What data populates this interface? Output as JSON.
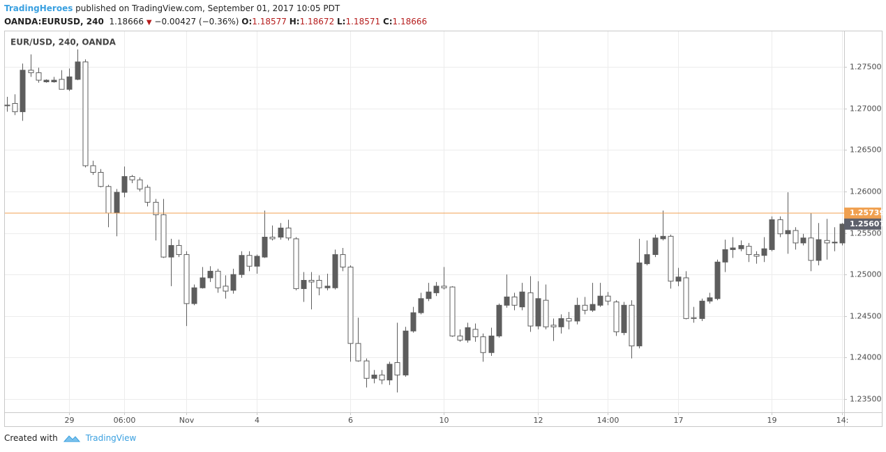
{
  "header": {
    "author": "TradingHeroes",
    "published": "published on TradingView.com, September 01, 2017 10:05 PDT",
    "symbol": "OANDA:EURUSD, 240",
    "last": "1.18666",
    "change": "−0.00427 (−0.36%)",
    "o_label": "O:",
    "o": "1.18577",
    "h_label": "H:",
    "h": "1.18672",
    "l_label": "L:",
    "l": "1.18571",
    "c_label": "C:",
    "c": "1.18666"
  },
  "footer": {
    "created": "Created with",
    "brand": "TradingView"
  },
  "chart_data": {
    "type": "candlestick",
    "title": "EUR/USD, 240, OANDA",
    "categories": [
      null,
      null,
      null,
      null,
      null,
      null,
      null,
      null,
      "29",
      null,
      null,
      null,
      null,
      null,
      null,
      "06:00",
      null,
      null,
      null,
      null,
      null,
      null,
      null,
      "Nov",
      null,
      null,
      null,
      null,
      null,
      null,
      null,
      null,
      "4",
      null,
      null,
      null,
      null,
      null,
      null,
      null,
      null,
      null,
      null,
      null,
      "6",
      null,
      null,
      null,
      null,
      null,
      null,
      null,
      null,
      null,
      null,
      null,
      "10",
      null,
      null,
      null,
      null,
      null,
      null,
      null,
      null,
      null,
      null,
      null,
      "12",
      null,
      null,
      null,
      null,
      null,
      null,
      null,
      null,
      "14:00",
      null,
      null,
      null,
      null,
      null,
      null,
      null,
      null,
      "17",
      null,
      null,
      null,
      null,
      null,
      null,
      null,
      null,
      null,
      null,
      null,
      "19",
      null,
      null,
      null,
      null,
      null,
      null,
      null,
      null,
      "14:"
    ],
    "open": [
      1.2704,
      1.2706,
      1.2696,
      1.2746,
      1.2743,
      1.2732,
      1.2732,
      1.2735,
      1.2723,
      1.2735,
      1.2756,
      1.2631,
      1.2623,
      1.2606,
      1.2574,
      1.2599,
      1.2618,
      1.2614,
      1.2605,
      1.2587,
      1.2572,
      1.2521,
      1.2535,
      1.2524,
      1.2465,
      1.2484,
      1.2496,
      1.2504,
      1.2486,
      1.2481,
      1.25,
      1.2523,
      1.251,
      1.2521,
      1.2545,
      1.2545,
      1.2556,
      1.2543,
      1.2483,
      1.2493,
      1.2493,
      1.2484,
      1.2484,
      1.2524,
      1.2509,
      1.2417,
      1.2396,
      1.2375,
      1.2379,
      1.2373,
      1.2394,
      1.2379,
      1.2432,
      1.2454,
      1.2471,
      1.2478,
      1.2486,
      1.2485,
      1.2426,
      1.2421,
      1.2434,
      1.2425,
      1.2406,
      1.2426,
      1.2463,
      1.2473,
      1.2461,
      1.2478,
      1.2438,
      1.2469,
      1.2439,
      1.2437,
      1.2447,
      1.2444,
      1.2463,
      1.2457,
      1.2463,
      1.2474,
      1.2467,
      1.243,
      1.2463,
      1.2414,
      1.2513,
      1.2524,
      1.2543,
      1.2546,
      1.2492,
      1.2496,
      1.2448,
      1.2447,
      1.2468,
      1.2471,
      1.2515,
      1.253,
      1.2531,
      1.2534,
      1.2524,
      1.2523,
      1.253,
      1.2566,
      1.2549,
      1.2553,
      1.2538,
      1.2544,
      1.2517,
      1.2541,
      1.2538,
      1.2538
    ],
    "high": [
      1.2714,
      1.2717,
      1.2754,
      1.2765,
      1.2749,
      1.2735,
      1.2738,
      1.2746,
      1.2748,
      1.2771,
      1.2759,
      1.2637,
      1.2627,
      1.2608,
      1.2603,
      1.263,
      1.262,
      1.2617,
      1.2608,
      1.2591,
      1.2591,
      1.2543,
      1.2542,
      1.2528,
      1.2488,
      1.2509,
      1.251,
      1.2507,
      1.2499,
      1.2507,
      1.2528,
      1.2528,
      1.2524,
      1.2577,
      1.2559,
      1.2562,
      1.2566,
      1.2545,
      1.2503,
      1.2503,
      1.2499,
      1.2501,
      1.253,
      1.2532,
      1.2511,
      1.2448,
      1.2399,
      1.2385,
      1.2385,
      1.2395,
      1.2442,
      1.2437,
      1.2461,
      1.2478,
      1.249,
      1.2491,
      1.2509,
      1.2486,
      1.2434,
      1.2442,
      1.2441,
      1.2429,
      1.2436,
      1.2465,
      1.25,
      1.2478,
      1.249,
      1.2498,
      1.2492,
      1.2488,
      1.2447,
      1.2452,
      1.2455,
      1.2472,
      1.2473,
      1.249,
      1.249,
      1.2479,
      1.2469,
      1.2467,
      1.2469,
      1.2543,
      1.2541,
      1.2548,
      1.2577,
      1.2548,
      1.2508,
      1.2504,
      1.2461,
      1.2471,
      1.2478,
      1.2518,
      1.2542,
      1.2545,
      1.2541,
      1.2538,
      1.2528,
      1.2545,
      1.257,
      1.257,
      1.2599,
      1.2557,
      1.2549,
      1.2574,
      1.2562,
      1.2567,
      1.2557,
      1.2562
    ],
    "low": [
      1.2696,
      1.2692,
      1.2685,
      1.2738,
      1.2731,
      1.2731,
      1.2731,
      1.2723,
      1.2721,
      1.2734,
      1.2629,
      1.262,
      1.2605,
      1.2557,
      1.2546,
      1.2593,
      1.261,
      1.26,
      1.2582,
      1.2541,
      1.252,
      1.2486,
      1.2521,
      1.2438,
      1.2463,
      1.2483,
      1.2491,
      1.2478,
      1.2471,
      1.2477,
      1.2496,
      1.2504,
      1.2501,
      1.252,
      1.2541,
      1.2542,
      1.2541,
      1.2481,
      1.2467,
      1.2458,
      1.2475,
      1.2481,
      1.2482,
      1.2504,
      1.2395,
      1.2395,
      1.2364,
      1.2369,
      1.2368,
      1.2367,
      1.2358,
      1.2377,
      1.243,
      1.2452,
      1.2468,
      1.2474,
      1.2482,
      1.2425,
      1.2419,
      1.2418,
      1.2419,
      1.2395,
      1.2402,
      1.2424,
      1.246,
      1.2457,
      1.2457,
      1.2431,
      1.2434,
      1.2434,
      1.242,
      1.2429,
      1.2434,
      1.244,
      1.2452,
      1.2455,
      1.2461,
      1.2463,
      1.2426,
      1.2427,
      1.2399,
      1.2411,
      1.2511,
      1.2521,
      1.2541,
      1.2483,
      1.2486,
      1.2446,
      1.2442,
      1.2444,
      1.2465,
      1.2469,
      1.2503,
      1.252,
      1.2528,
      1.2515,
      1.2513,
      1.2515,
      1.2528,
      1.2545,
      1.2525,
      1.253,
      1.2535,
      1.2504,
      1.2511,
      1.2518,
      1.2528,
      1.2535
    ],
    "close": [
      1.2704,
      1.2696,
      1.2746,
      1.2743,
      1.2734,
      1.2734,
      1.2734,
      1.2723,
      1.2738,
      1.2756,
      1.2631,
      1.2623,
      1.2606,
      1.2574,
      1.2599,
      1.2618,
      1.2614,
      1.2603,
      1.2587,
      1.2572,
      1.2521,
      1.2535,
      1.2524,
      1.2465,
      1.2484,
      1.2496,
      1.2504,
      1.2484,
      1.248,
      1.25,
      1.2523,
      1.251,
      1.2522,
      1.2545,
      1.2543,
      1.2556,
      1.2544,
      1.2483,
      1.2493,
      1.2491,
      1.2484,
      1.2486,
      1.2524,
      1.2509,
      1.2417,
      1.2396,
      1.2375,
      1.2379,
      1.2373,
      1.2392,
      1.2379,
      1.2432,
      1.2454,
      1.2471,
      1.2479,
      1.2486,
      1.2484,
      1.2426,
      1.2421,
      1.2436,
      1.2425,
      1.2406,
      1.2426,
      1.2463,
      1.2473,
      1.2463,
      1.2479,
      1.2438,
      1.2471,
      1.2437,
      1.2437,
      1.2447,
      1.2444,
      1.2463,
      1.2457,
      1.2464,
      1.2474,
      1.2468,
      1.2431,
      1.2463,
      1.2414,
      1.2514,
      1.2524,
      1.2544,
      1.2546,
      1.2492,
      1.2497,
      1.2447,
      1.2447,
      1.2468,
      1.2472,
      1.2515,
      1.253,
      1.2532,
      1.2535,
      1.2524,
      1.2522,
      1.2531,
      1.2566,
      1.2549,
      1.2553,
      1.2538,
      1.2544,
      1.2517,
      1.2542,
      1.2538,
      1.2539,
      1.25607
    ],
    "up_color": "#5d5d5d",
    "down_color": "#ffffff",
    "wick_color": "#5d5d5d",
    "ylim": [
      1.23341,
      1.27928
    ],
    "yticks": [
      {
        "value": 1.235,
        "label": "1.23500"
      },
      {
        "value": 1.24,
        "label": "1.24000"
      },
      {
        "value": 1.245,
        "label": "1.24500"
      },
      {
        "value": 1.25,
        "label": "1.25000"
      },
      {
        "value": 1.255,
        "label": "1.25500"
      },
      {
        "value": 1.26,
        "label": "1.26000"
      },
      {
        "value": 1.265,
        "label": "1.26500"
      },
      {
        "value": 1.27,
        "label": "1.27000"
      },
      {
        "value": 1.275,
        "label": "1.27500"
      }
    ],
    "grid": true,
    "hline": {
      "value": 1.25739,
      "color": "#f0a050"
    },
    "last_price_color": "#5d606b"
  }
}
